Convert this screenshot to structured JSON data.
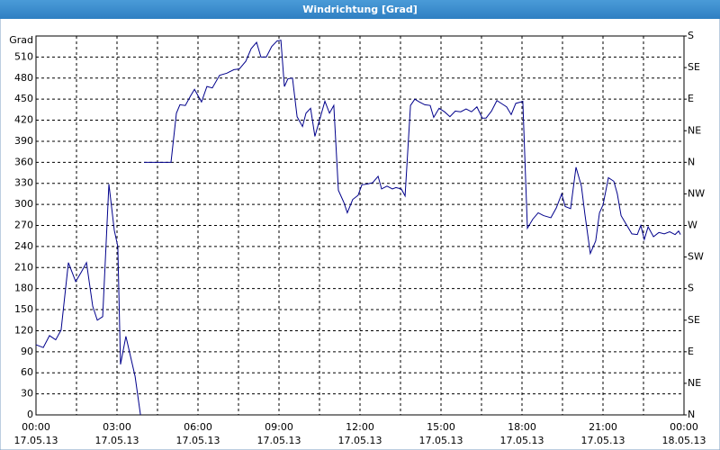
{
  "chart_data": {
    "type": "line",
    "title": "Windrichtung [Grad]",
    "y_label": "Grad",
    "color": "#00008b",
    "grid": true,
    "xlim": [
      0,
      24
    ],
    "xticks": [
      {
        "value": 0,
        "label": "00:00"
      },
      {
        "value": 3,
        "label": "03:00"
      },
      {
        "value": 6,
        "label": "06:00"
      },
      {
        "value": 9,
        "label": "09:00"
      },
      {
        "value": 12,
        "label": "12:00"
      },
      {
        "value": 15,
        "label": "15:00"
      },
      {
        "value": 18,
        "label": "18:00"
      },
      {
        "value": 21,
        "label": "21:00"
      },
      {
        "value": 24,
        "label": "00:00"
      }
    ],
    "xtick_dates": [
      "17.05.13",
      "17.05.13",
      "17.05.13",
      "17.05.13",
      "17.05.13",
      "17.05.13",
      "17.05.13",
      "17.05.13",
      "18.05.13"
    ],
    "xminor": [
      1.5,
      4.5,
      7.5,
      10.5,
      13.5,
      16.5,
      19.5,
      22.5
    ],
    "ylim": [
      0,
      540
    ],
    "yticks": [
      0,
      30,
      60,
      90,
      120,
      150,
      180,
      210,
      240,
      270,
      300,
      330,
      360,
      390,
      420,
      450,
      480,
      510
    ],
    "y2lim": [
      0,
      540
    ],
    "y2ticks": [
      {
        "value": 0,
        "label": "N"
      },
      {
        "value": 45,
        "label": "NE"
      },
      {
        "value": 90,
        "label": "E"
      },
      {
        "value": 135,
        "label": "SE"
      },
      {
        "value": 180,
        "label": "S"
      },
      {
        "value": 225,
        "label": "SW"
      },
      {
        "value": 270,
        "label": "W"
      },
      {
        "value": 315,
        "label": "NW"
      },
      {
        "value": 360,
        "label": "N"
      },
      {
        "value": 405,
        "label": "NE"
      },
      {
        "value": 450,
        "label": "E"
      },
      {
        "value": 495,
        "label": "SE"
      },
      {
        "value": 540,
        "label": "S"
      }
    ],
    "x": [
      0,
      0.27,
      0.5,
      0.73,
      0.93,
      1.2,
      1.47,
      1.67,
      1.87,
      2.1,
      2.27,
      2.47,
      2.7,
      2.9,
      3.03,
      3.13,
      3.33,
      3.67,
      3.87,
      3.93,
      4,
      5,
      5.2,
      5.33,
      5.53,
      5.73,
      5.87,
      6.13,
      6.33,
      6.53,
      6.8,
      7.07,
      7.33,
      7.53,
      7.77,
      7.97,
      8.17,
      8.33,
      8.53,
      8.73,
      8.93,
      9.07,
      9.2,
      9.33,
      9.5,
      9.67,
      9.87,
      10,
      10.17,
      10.33,
      10.53,
      10.7,
      10.87,
      11.03,
      11.2,
      11.4,
      11.53,
      11.73,
      11.93,
      12.07,
      12.27,
      12.47,
      12.67,
      12.8,
      13,
      13.2,
      13.33,
      13.53,
      13.67,
      13.87,
      14.03,
      14.2,
      14.4,
      14.6,
      14.73,
      14.93,
      15.13,
      15.33,
      15.53,
      15.73,
      15.93,
      16.13,
      16.33,
      16.53,
      16.67,
      16.87,
      17.07,
      17.27,
      17.43,
      17.6,
      17.77,
      17.97,
      18.03,
      18.2,
      18.4,
      18.6,
      18.8,
      19.07,
      19.27,
      19.47,
      19.6,
      19.8,
      20,
      20.2,
      20.33,
      20.53,
      20.73,
      20.87,
      21,
      21.2,
      21.4,
      21.53,
      21.67,
      21.87,
      22.07,
      22.27,
      22.4,
      22.53,
      22.67,
      22.87,
      23.07,
      23.27,
      23.47,
      23.67,
      23.8,
      23.87
    ],
    "values": [
      100,
      96,
      113,
      107,
      121,
      217,
      190,
      203,
      217,
      155,
      135,
      140,
      329,
      263,
      240,
      72,
      112,
      55,
      0,
      null,
      360,
      360,
      430,
      442,
      441,
      455,
      464,
      446,
      468,
      466,
      484,
      487,
      492,
      493,
      504,
      522,
      531,
      510,
      510,
      525,
      533,
      534,
      468,
      479,
      480,
      425,
      411,
      430,
      437,
      397,
      424,
      447,
      430,
      441,
      320,
      303,
      288,
      307,
      313,
      328,
      329,
      331,
      340,
      322,
      326,
      322,
      324,
      322,
      312,
      441,
      450,
      446,
      442,
      441,
      424,
      437,
      432,
      425,
      433,
      432,
      436,
      432,
      439,
      423,
      423,
      433,
      448,
      443,
      439,
      428,
      444,
      446,
      447,
      266,
      279,
      288,
      284,
      281,
      295,
      315,
      297,
      294,
      353,
      326,
      286,
      230,
      248,
      288,
      299,
      338,
      333,
      315,
      284,
      271,
      258,
      257,
      270,
      250,
      268,
      254,
      260,
      258,
      261,
      257,
      262,
      257
    ]
  }
}
